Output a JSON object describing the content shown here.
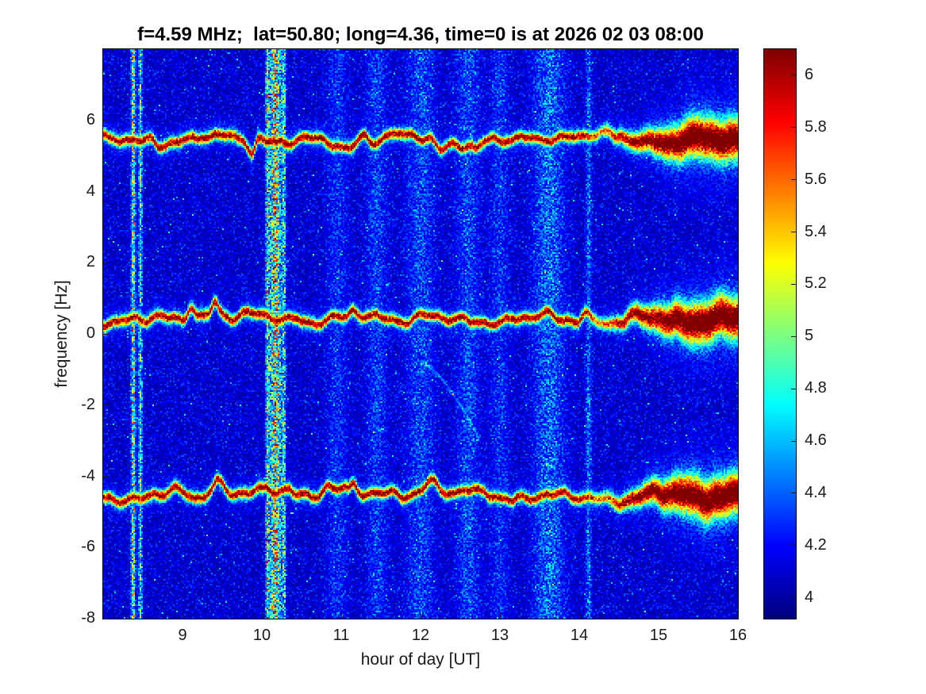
{
  "figure": {
    "background": "#ffffff",
    "axis_color": "#1a1a1a"
  },
  "chart_data": {
    "type": "heatmap",
    "subtype": "doppler-spectrogram",
    "title": "f=4.59 MHz;  lat=50.80; long=4.36, time=0 is at 2026 02 03 08:00",
    "xlabel": "hour of day [UT]",
    "ylabel": "frequency [Hz]",
    "xlim": [
      8,
      16
    ],
    "ylim": [
      -8,
      8
    ],
    "xticks": [
      9,
      10,
      11,
      12,
      13,
      14,
      15,
      16
    ],
    "yticks": [
      -8,
      -6,
      -4,
      -2,
      0,
      2,
      4,
      6
    ],
    "grid": false,
    "colormap": "jet",
    "colorbar": {
      "position": "right",
      "clim": [
        3.92,
        6.1
      ],
      "ticks": [
        4,
        4.2,
        4.4,
        4.6,
        4.8,
        5,
        5.2,
        5.4,
        5.6,
        5.8,
        6
      ]
    },
    "background_level": {
      "mean_db": 4.1,
      "speckle_db": 0.4
    },
    "doppler_traces": [
      {
        "name": "upper-trace",
        "center_hz": 5.45,
        "wiggle_hz": 0.18,
        "peak_db": 5.85
      },
      {
        "name": "center-trace",
        "center_hz": 0.4,
        "wiggle_hz": 0.2,
        "peak_db": 5.85
      },
      {
        "name": "lower-trace",
        "center_hz": -4.55,
        "wiggle_hz": 0.2,
        "peak_db": 5.85
      }
    ],
    "trace_enhancement": {
      "from_hour": 14.5,
      "peak_hour": 15.55,
      "to_hour": 16.0,
      "extra_db": 0.35,
      "width_scale": 2.8
    },
    "vertical_interference": [
      {
        "hour": 8.38,
        "width": 0.018,
        "boost": 1.6
      },
      {
        "hour": 8.47,
        "width": 0.016,
        "boost": 1.2
      },
      {
        "hour": 10.07,
        "width": 0.014,
        "boost": 1.3
      },
      {
        "hour": 10.17,
        "width": 0.05,
        "boost": 1.8
      },
      {
        "hour": 10.28,
        "width": 0.016,
        "boost": 1.1
      },
      {
        "hour": 10.95,
        "width": 0.09,
        "boost": 0.3
      },
      {
        "hour": 11.45,
        "width": 0.09,
        "boost": 0.35
      },
      {
        "hour": 12.0,
        "width": 0.12,
        "boost": 0.4
      },
      {
        "hour": 12.6,
        "width": 0.1,
        "boost": 0.4
      },
      {
        "hour": 13.0,
        "width": 0.08,
        "boost": 0.3
      },
      {
        "hour": 13.62,
        "width": 0.13,
        "boost": 0.55
      },
      {
        "hour": 14.12,
        "width": 0.025,
        "boost": 0.55
      }
    ],
    "faint_arc": {
      "x_start": 12.0,
      "x_end": 12.75,
      "y_start": -0.8,
      "y_end": -3.0
    }
  }
}
